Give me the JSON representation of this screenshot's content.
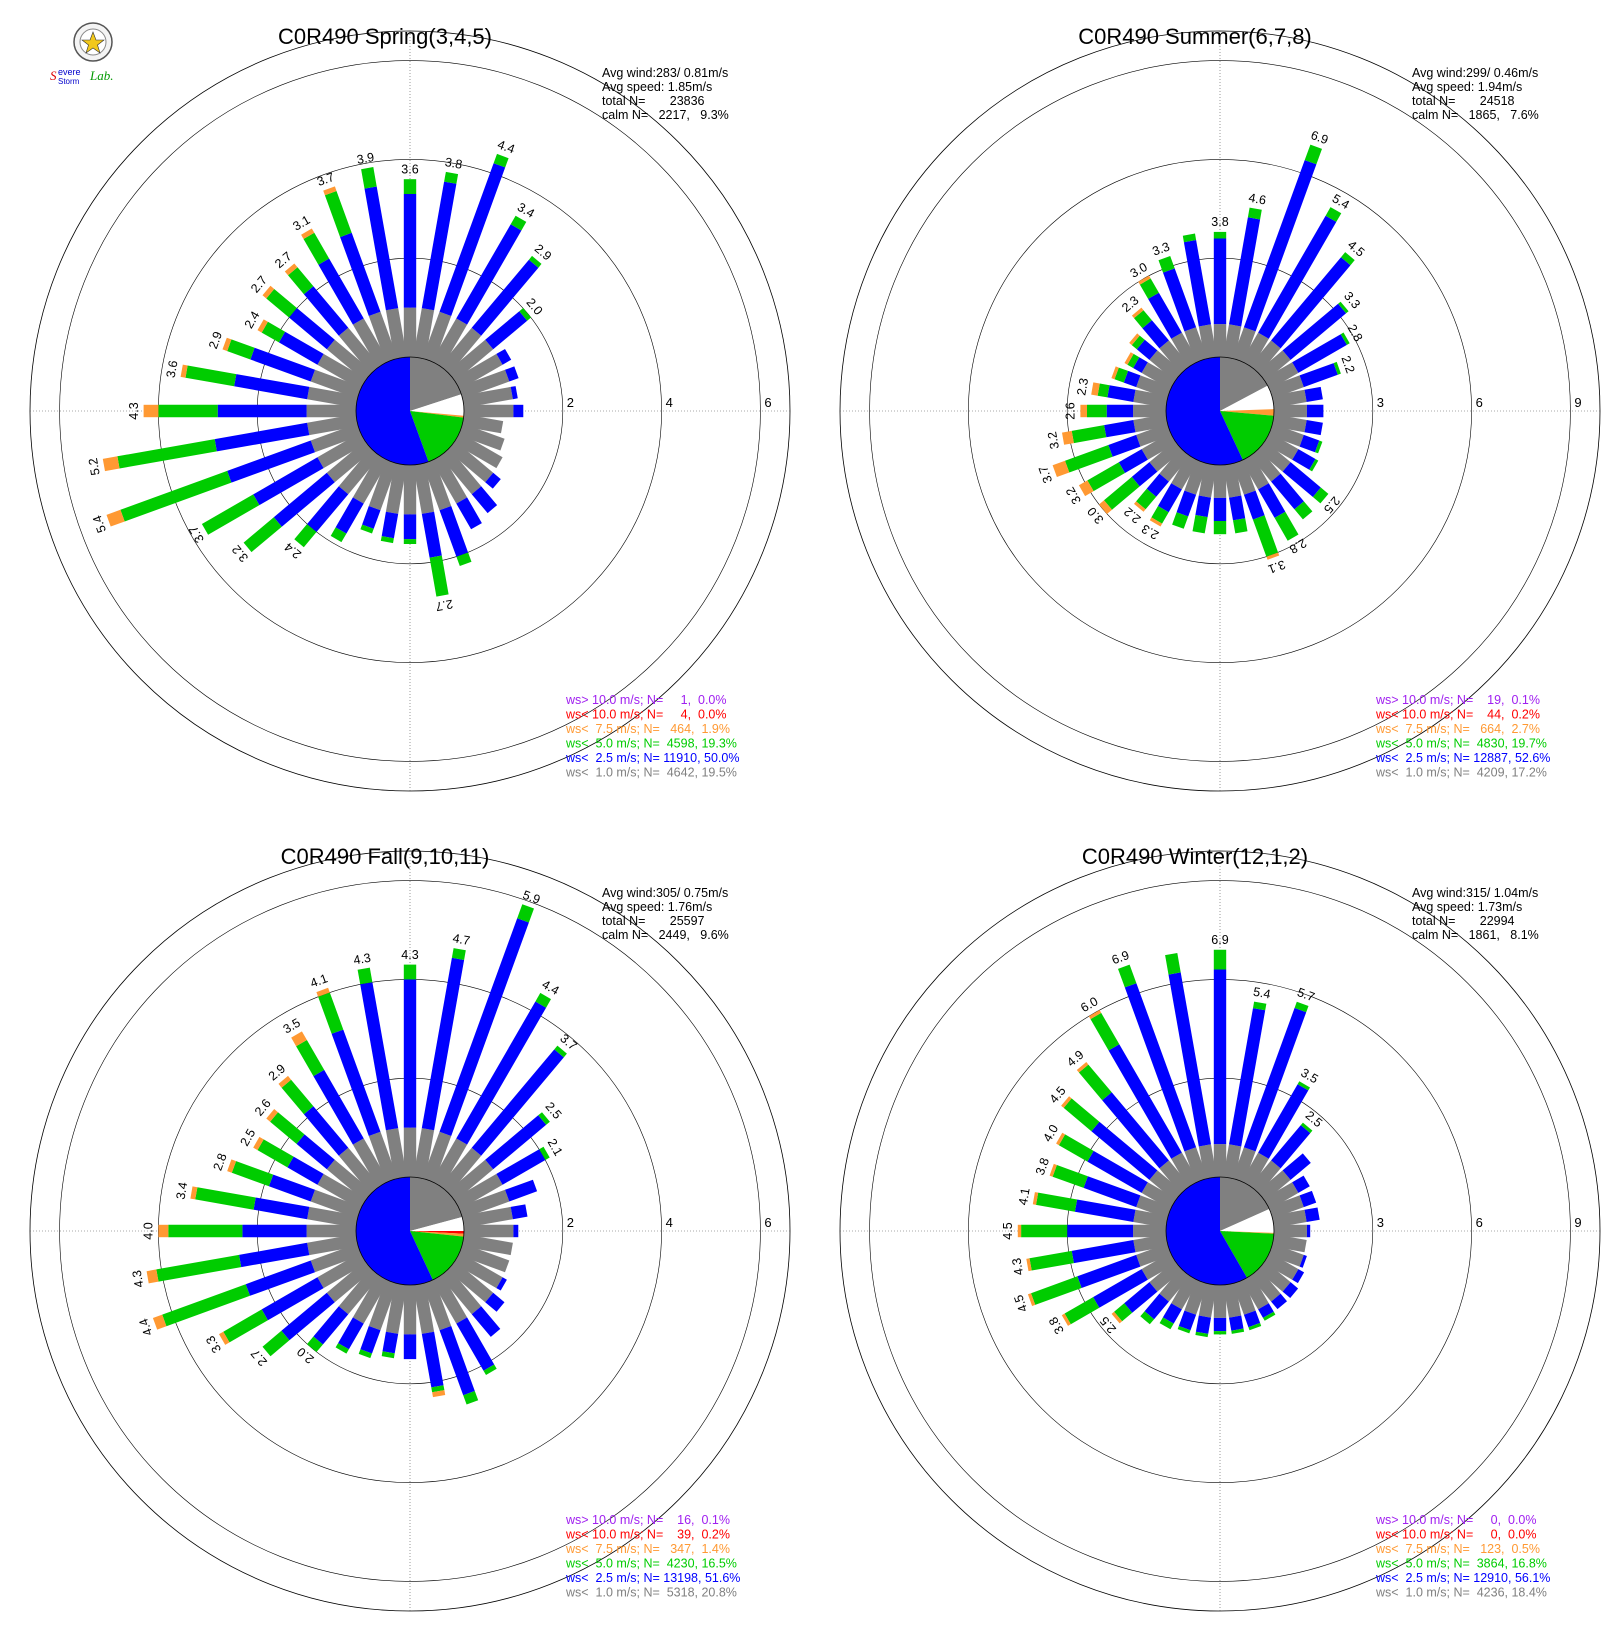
{
  "logo": {
    "text": "SSevere Storm Lab."
  },
  "chart_data": [
    {
      "type": "wind_rose",
      "title": "C0R490 Spring(3,4,5)",
      "stats": [
        "Avg wind:283/ 0.81m/s",
        "Avg speed: 1.85m/s",
        "total N=       23836",
        "calm N=   2217,   9.3%"
      ],
      "rings": [
        2,
        4,
        6
      ],
      "rmax": 6.6,
      "bins": [
        {
          "label": "ws> 10.0 m/s; N=     1,  0.0%",
          "color": "#a020f0"
        },
        {
          "label": "ws< 10.0 m/s; N=     4,  0.0%",
          "color": "#ff0000"
        },
        {
          "label": "ws<  7.5 m/s; N=   464,  1.9%",
          "color": "#ff9933"
        },
        {
          "label": "ws<  5.0 m/s; N=  4598, 19.3%",
          "color": "#00cc00"
        },
        {
          "label": "ws<  2.5 m/s; N= 11910, 50.0%",
          "color": "#0000ff"
        },
        {
          "label": "ws<  1.0 m/s; N=  4642, 19.5%",
          "color": "#808080"
        }
      ],
      "calm_sectors": [
        {
          "start": 0,
          "end": 72,
          "color": "#808080"
        },
        {
          "start": 72,
          "end": 95,
          "color": "#ffffff"
        },
        {
          "start": 95,
          "end": 97,
          "color": "#ff9933"
        },
        {
          "start": 97,
          "end": 160,
          "color": "#00cc00"
        },
        {
          "start": 160,
          "end": 360,
          "color": "#0000ff"
        }
      ],
      "directions": [
        0,
        10,
        20,
        30,
        40,
        50,
        60,
        70,
        80,
        90,
        100,
        110,
        120,
        130,
        140,
        150,
        160,
        170,
        180,
        190,
        200,
        210,
        220,
        230,
        240,
        250,
        260,
        270,
        280,
        290,
        300,
        310,
        320,
        330,
        340,
        350
      ],
      "totals": [
        3.6,
        3.8,
        4.4,
        3.4,
        2.9,
        2.0,
        1.2,
        1.2,
        1.1,
        1.2,
        0.8,
        0.9,
        1.0,
        1.2,
        1.5,
        1.6,
        2.2,
        2.7,
        1.6,
        1.6,
        1.5,
        1.9,
        2.4,
        3.2,
        3.7,
        5.4,
        5.2,
        4.3,
        3.6,
        2.9,
        2.4,
        2.7,
        2.7,
        3.1,
        3.7,
        3.9
      ],
      "gray": [
        1.0,
        1.0,
        1.0,
        1.0,
        1.0,
        1.0,
        1.0,
        1.0,
        1.0,
        1.0,
        0.8,
        0.9,
        1.0,
        1.0,
        1.0,
        1.0,
        1.0,
        1.0,
        1.0,
        1.0,
        1.0,
        1.0,
        1.0,
        1.0,
        1.0,
        1.0,
        1.0,
        1.0,
        1.0,
        1.0,
        1.0,
        1.0,
        1.0,
        1.0,
        1.0,
        1.0
      ],
      "blue": [
        3.3,
        3.6,
        4.2,
        3.2,
        2.8,
        1.9,
        1.2,
        1.2,
        1.1,
        1.2,
        0.8,
        0.9,
        1.0,
        1.2,
        1.5,
        1.6,
        2.0,
        1.9,
        1.5,
        1.5,
        1.4,
        1.7,
        2.0,
        2.4,
        2.5,
        2.8,
        2.9,
        2.8,
        2.5,
        2.3,
        1.9,
        2.0,
        2.1,
        2.4,
        2.7,
        3.5
      ],
      "green": [
        3.6,
        3.8,
        4.4,
        3.4,
        2.9,
        2.0,
        1.2,
        1.2,
        1.1,
        1.2,
        0.8,
        0.9,
        1.0,
        1.2,
        1.5,
        1.6,
        2.2,
        2.7,
        1.6,
        1.6,
        1.5,
        1.9,
        2.4,
        3.2,
        3.7,
        5.1,
        4.9,
        4.0,
        3.5,
        2.8,
        2.3,
        2.6,
        2.6,
        3.0,
        3.6,
        3.9
      ],
      "orange": [
        3.6,
        3.8,
        4.4,
        3.4,
        2.9,
        2.0,
        1.2,
        1.2,
        1.1,
        1.2,
        0.8,
        0.9,
        1.0,
        1.2,
        1.5,
        1.6,
        2.2,
        2.7,
        1.6,
        1.6,
        1.5,
        1.9,
        2.4,
        3.2,
        3.7,
        5.4,
        5.2,
        4.3,
        3.6,
        2.9,
        2.4,
        2.7,
        2.7,
        3.1,
        3.7,
        3.9
      ],
      "labels": [
        "3.6",
        "3.8",
        "4.4",
        "3.4",
        "2.9",
        "2.0",
        "",
        "",
        "",
        "",
        "",
        "",
        "",
        "",
        "",
        "",
        "",
        "2.7",
        "",
        "",
        "",
        "",
        "2.4",
        "3.2",
        "3.7",
        "5.4",
        "5.2",
        "4.3",
        "3.6",
        "2.9",
        "2.4",
        "2.7",
        "2.7",
        "3.1",
        "3.7",
        "3.9"
      ]
    },
    {
      "type": "wind_rose",
      "title": "C0R490 Summer(6,7,8)",
      "stats": [
        "Avg wind:299/ 0.46m/s",
        "Avg speed: 1.94m/s",
        "total N=       24518",
        "calm N=   1865,   7.6%"
      ],
      "rings": [
        3,
        6,
        9
      ],
      "rmax": 9.9,
      "bins": [
        {
          "label": "ws> 10.0 m/s; N=    19,  0.1%",
          "color": "#a020f0"
        },
        {
          "label": "ws< 10.0 m/s; N=    44,  0.2%",
          "color": "#ff0000"
        },
        {
          "label": "ws<  7.5 m/s; N=   664,  2.7%",
          "color": "#ff9933"
        },
        {
          "label": "ws<  5.0 m/s; N=  4830, 19.7%",
          "color": "#00cc00"
        },
        {
          "label": "ws<  2.5 m/s; N= 12887, 52.6%",
          "color": "#0000ff"
        },
        {
          "label": "ws<  1.0 m/s; N=  4209, 17.2%",
          "color": "#808080"
        }
      ],
      "calm_sectors": [
        {
          "start": 0,
          "end": 62,
          "color": "#808080"
        },
        {
          "start": 62,
          "end": 88,
          "color": "#ffffff"
        },
        {
          "start": 88,
          "end": 95,
          "color": "#ff9933"
        },
        {
          "start": 95,
          "end": 155,
          "color": "#00cc00"
        },
        {
          "start": 155,
          "end": 360,
          "color": "#0000ff"
        }
      ],
      "directions": [
        0,
        10,
        20,
        30,
        40,
        50,
        60,
        70,
        80,
        90,
        100,
        110,
        120,
        130,
        140,
        150,
        160,
        170,
        180,
        190,
        200,
        210,
        220,
        230,
        240,
        250,
        260,
        270,
        280,
        290,
        300,
        310,
        320,
        330,
        340,
        350
      ],
      "totals": [
        3.8,
        4.6,
        6.9,
        5.4,
        4.5,
        3.3,
        2.8,
        2.2,
        1.5,
        1.5,
        1.5,
        1.6,
        1.7,
        2.5,
        2.5,
        2.8,
        3.1,
        2.1,
        2.1,
        2.1,
        2.1,
        2.3,
        2.2,
        3.0,
        3.2,
        3.7,
        3.2,
        2.6,
        2.3,
        1.8,
        1.6,
        1.8,
        2.3,
        3.0,
        3.3,
        3.8
      ],
      "gray": [
        1.0,
        1.0,
        1.0,
        1.0,
        1.0,
        1.0,
        1.0,
        1.0,
        1.0,
        1.0,
        1.0,
        1.0,
        1.0,
        1.0,
        1.0,
        1.0,
        1.0,
        1.0,
        1.0,
        1.0,
        1.0,
        1.0,
        1.0,
        1.0,
        1.0,
        1.0,
        1.0,
        1.0,
        1.0,
        1.0,
        1.0,
        1.0,
        1.0,
        1.0,
        1.0,
        1.0
      ],
      "blue": [
        3.6,
        4.3,
        6.4,
        5.1,
        4.3,
        3.2,
        2.7,
        2.1,
        1.5,
        1.5,
        1.5,
        1.5,
        1.6,
        2.2,
        2.1,
        2.0,
        1.8,
        1.7,
        1.7,
        1.6,
        1.7,
        1.8,
        1.6,
        1.7,
        1.8,
        1.9,
        1.9,
        1.8,
        1.8,
        1.4,
        1.3,
        1.5,
        1.8,
        2.4,
        2.9,
        3.6
      ],
      "green": [
        3.8,
        4.6,
        6.9,
        5.4,
        4.5,
        3.3,
        2.8,
        2.2,
        1.5,
        1.5,
        1.5,
        1.6,
        1.7,
        2.5,
        2.5,
        2.8,
        3.0,
        2.1,
        2.1,
        2.1,
        2.1,
        2.2,
        2.1,
        2.8,
        2.9,
        3.3,
        2.9,
        2.4,
        2.1,
        1.7,
        1.5,
        1.7,
        2.2,
        2.9,
        3.3,
        3.8
      ],
      "orange": [
        3.8,
        4.6,
        6.9,
        5.4,
        4.5,
        3.3,
        2.8,
        2.2,
        1.5,
        1.5,
        1.5,
        1.6,
        1.7,
        2.5,
        2.5,
        2.8,
        3.1,
        2.1,
        2.1,
        2.1,
        2.1,
        2.3,
        2.2,
        3.0,
        3.2,
        3.7,
        3.2,
        2.6,
        2.3,
        1.8,
        1.6,
        1.8,
        2.3,
        3.0,
        3.3,
        3.8
      ],
      "labels": [
        "3.8",
        "4.6",
        "6.9",
        "5.4",
        "4.5",
        "3.3",
        "2.8",
        "2.2",
        "",
        "",
        "",
        "",
        "",
        "2.5",
        "",
        "2.8",
        "3.1",
        "",
        "",
        "",
        "",
        "2.3",
        "2.2",
        "3.0",
        "3.2",
        "3.7",
        "3.2",
        "2.6",
        "2.3",
        "",
        "",
        "",
        "2.3",
        "3.0",
        "3.3",
        ""
      ]
    },
    {
      "type": "wind_rose",
      "title": "C0R490 Fall(9,10,11)",
      "stats": [
        "Avg wind:305/ 0.75m/s",
        "Avg speed: 1.76m/s",
        "total N=       25597",
        "calm N=   2449,   9.6%"
      ],
      "rings": [
        2,
        4,
        6
      ],
      "rmax": 6.6,
      "bins": [
        {
          "label": "ws> 10.0 m/s; N=    16,  0.1%",
          "color": "#a020f0"
        },
        {
          "label": "ws< 10.0 m/s; N=    39,  0.2%",
          "color": "#ff0000"
        },
        {
          "label": "ws<  7.5 m/s; N=   347,  1.4%",
          "color": "#ff9933"
        },
        {
          "label": "ws<  5.0 m/s; N=  4230, 16.5%",
          "color": "#00cc00"
        },
        {
          "label": "ws<  2.5 m/s; N= 13198, 51.6%",
          "color": "#0000ff"
        },
        {
          "label": "ws<  1.0 m/s; N=  5318, 20.8%",
          "color": "#808080"
        }
      ],
      "calm_sectors": [
        {
          "start": 0,
          "end": 75,
          "color": "#808080"
        },
        {
          "start": 75,
          "end": 90,
          "color": "#ffffff"
        },
        {
          "start": 90,
          "end": 93,
          "color": "#ff0000"
        },
        {
          "start": 93,
          "end": 96,
          "color": "#ff9933"
        },
        {
          "start": 96,
          "end": 155,
          "color": "#00cc00"
        },
        {
          "start": 155,
          "end": 360,
          "color": "#0000ff"
        }
      ],
      "directions": [
        0,
        10,
        20,
        30,
        40,
        50,
        60,
        70,
        80,
        90,
        100,
        110,
        120,
        130,
        140,
        150,
        160,
        170,
        180,
        190,
        200,
        210,
        220,
        230,
        240,
        250,
        260,
        270,
        280,
        290,
        300,
        310,
        320,
        330,
        340,
        350
      ],
      "totals": [
        4.3,
        4.7,
        5.9,
        4.4,
        3.7,
        2.5,
        2.1,
        1.6,
        1.3,
        1.1,
        1.0,
        1.0,
        1.1,
        1.3,
        1.6,
        2.2,
        2.6,
        2.3,
        1.5,
        1.5,
        1.6,
        1.7,
        2.0,
        2.7,
        3.3,
        4.4,
        4.3,
        4.0,
        3.4,
        2.8,
        2.5,
        2.6,
        2.9,
        3.5,
        4.1,
        4.3
      ],
      "gray": [
        1.0,
        1.0,
        1.0,
        1.0,
        1.0,
        1.0,
        1.0,
        1.0,
        1.0,
        1.0,
        1.0,
        1.0,
        1.0,
        1.0,
        1.0,
        1.0,
        1.0,
        1.0,
        1.0,
        1.0,
        1.0,
        1.0,
        1.0,
        1.0,
        1.0,
        1.0,
        1.0,
        1.0,
        1.0,
        1.0,
        1.0,
        1.0,
        1.0,
        1.0,
        1.0,
        1.0
      ],
      "blue": [
        4.0,
        4.5,
        5.6,
        4.2,
        3.6,
        2.4,
        2.0,
        1.6,
        1.3,
        1.1,
        1.0,
        1.0,
        1.1,
        1.3,
        1.6,
        2.1,
        2.4,
        2.1,
        1.5,
        1.4,
        1.5,
        1.6,
        1.8,
        2.2,
        2.3,
        2.4,
        2.4,
        2.3,
        2.1,
        1.9,
        1.7,
        1.8,
        2.1,
        2.6,
        3.2,
        4.0
      ],
      "green": [
        4.3,
        4.7,
        5.9,
        4.4,
        3.7,
        2.5,
        2.1,
        1.6,
        1.3,
        1.1,
        1.0,
        1.0,
        1.1,
        1.3,
        1.6,
        2.2,
        2.6,
        2.2,
        1.5,
        1.5,
        1.6,
        1.7,
        2.0,
        2.7,
        3.2,
        4.2,
        4.1,
        3.8,
        3.3,
        2.7,
        2.4,
        2.5,
        2.8,
        3.3,
        4.0,
        4.3
      ],
      "orange": [
        4.3,
        4.7,
        5.9,
        4.4,
        3.7,
        2.5,
        2.1,
        1.6,
        1.3,
        1.1,
        1.0,
        1.0,
        1.1,
        1.3,
        1.6,
        2.2,
        2.6,
        2.3,
        1.5,
        1.5,
        1.6,
        1.7,
        2.0,
        2.7,
        3.3,
        4.4,
        4.3,
        4.0,
        3.4,
        2.8,
        2.5,
        2.6,
        2.9,
        3.5,
        4.1,
        4.3
      ],
      "labels": [
        "4.3",
        "4.7",
        "5.9",
        "4.4",
        "3.7",
        "2.5",
        "2.1",
        "",
        "",
        "",
        "",
        "",
        "",
        "",
        "",
        "",
        "",
        "",
        "",
        "",
        "",
        "",
        "2.0",
        "2.7",
        "3.3",
        "4.4",
        "4.3",
        "4.0",
        "3.4",
        "2.8",
        "2.5",
        "2.6",
        "2.9",
        "3.5",
        "4.1",
        "4.3"
      ]
    },
    {
      "type": "wind_rose",
      "title": "C0R490 Winter(12,1,2)",
      "stats": [
        "Avg wind:315/ 1.04m/s",
        "Avg speed: 1.73m/s",
        "total N=       22994",
        "calm N=   1861,   8.1%"
      ],
      "rings": [
        3,
        6,
        9
      ],
      "rmax": 9.9,
      "bins": [
        {
          "label": "ws> 10.0 m/s; N=     0,  0.0%",
          "color": "#a020f0"
        },
        {
          "label": "ws< 10.0 m/s; N=     0,  0.0%",
          "color": "#ff0000"
        },
        {
          "label": "ws<  7.5 m/s; N=   123,  0.5%",
          "color": "#ff9933"
        },
        {
          "label": "ws<  5.0 m/s; N=  3864, 16.8%",
          "color": "#00cc00"
        },
        {
          "label": "ws<  2.5 m/s; N= 12910, 56.1%",
          "color": "#0000ff"
        },
        {
          "label": "ws<  1.0 m/s; N=  4236, 18.4%",
          "color": "#808080"
        }
      ],
      "calm_sectors": [
        {
          "start": 0,
          "end": 66,
          "color": "#808080"
        },
        {
          "start": 66,
          "end": 92,
          "color": "#ffffff"
        },
        {
          "start": 92,
          "end": 93,
          "color": "#ff9933"
        },
        {
          "start": 93,
          "end": 150,
          "color": "#00cc00"
        },
        {
          "start": 150,
          "end": 360,
          "color": "#0000ff"
        }
      ],
      "directions": [
        0,
        10,
        20,
        30,
        40,
        50,
        60,
        70,
        80,
        90,
        100,
        110,
        120,
        130,
        140,
        150,
        160,
        170,
        180,
        190,
        200,
        210,
        220,
        230,
        240,
        250,
        260,
        270,
        280,
        290,
        300,
        310,
        320,
        330,
        340,
        350
      ],
      "totals": [
        6.9,
        5.4,
        5.7,
        3.5,
        2.5,
        1.8,
        1.4,
        1.4,
        1.4,
        1.1,
        1.0,
        1.1,
        1.2,
        1.3,
        1.3,
        1.4,
        1.5,
        1.5,
        1.5,
        1.6,
        1.6,
        1.7,
        1.9,
        2.5,
        3.8,
        4.5,
        4.3,
        4.5,
        4.1,
        3.8,
        4.0,
        4.5,
        4.9,
        6.0,
        6.9,
        6.9
      ],
      "gray": [
        1.0,
        1.0,
        1.0,
        1.0,
        1.0,
        1.0,
        1.0,
        1.0,
        1.0,
        1.0,
        1.0,
        1.0,
        1.0,
        1.0,
        1.0,
        1.0,
        1.0,
        1.0,
        1.0,
        1.0,
        1.0,
        1.0,
        1.0,
        1.0,
        1.0,
        1.0,
        1.0,
        1.0,
        1.0,
        1.0,
        1.0,
        1.0,
        1.0,
        1.0,
        1.0,
        1.0
      ],
      "blue": [
        6.3,
        5.2,
        5.5,
        3.4,
        2.4,
        1.8,
        1.4,
        1.4,
        1.4,
        1.1,
        1.0,
        1.1,
        1.2,
        1.3,
        1.3,
        1.3,
        1.4,
        1.4,
        1.4,
        1.5,
        1.5,
        1.5,
        1.7,
        2.0,
        2.7,
        2.9,
        2.9,
        3.0,
        2.8,
        2.7,
        2.9,
        3.3,
        3.7,
        4.8,
        6.3,
        6.3
      ],
      "green": [
        6.9,
        5.4,
        5.7,
        3.5,
        2.5,
        1.8,
        1.4,
        1.4,
        1.4,
        1.1,
        1.0,
        1.1,
        1.2,
        1.3,
        1.3,
        1.4,
        1.5,
        1.5,
        1.5,
        1.6,
        1.6,
        1.7,
        1.9,
        2.4,
        3.7,
        4.4,
        4.2,
        4.4,
        4.0,
        3.7,
        3.9,
        4.4,
        4.8,
        5.9,
        6.9,
        6.9
      ],
      "orange": [
        6.9,
        5.4,
        5.7,
        3.5,
        2.5,
        1.8,
        1.4,
        1.4,
        1.4,
        1.1,
        1.0,
        1.1,
        1.2,
        1.3,
        1.3,
        1.4,
        1.5,
        1.5,
        1.5,
        1.6,
        1.6,
        1.7,
        1.9,
        2.5,
        3.8,
        4.5,
        4.3,
        4.5,
        4.1,
        3.8,
        4.0,
        4.5,
        4.9,
        6.0,
        6.9,
        6.9
      ],
      "labels": [
        "6.9",
        "5.4",
        "5.7",
        "3.5",
        "2.5",
        "",
        "",
        "",
        "",
        "",
        "",
        "",
        "",
        "",
        "",
        "",
        "",
        "",
        "",
        "",
        "",
        "",
        "",
        "2.5",
        "3.8",
        "4.5",
        "4.3",
        "4.5",
        "4.1",
        "3.8",
        "4.0",
        "4.5",
        "4.9",
        "6.0",
        "6.9",
        ""
      ]
    }
  ]
}
